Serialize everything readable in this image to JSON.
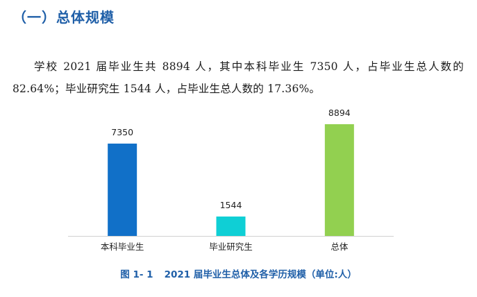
{
  "section": {
    "heading": "（一）总体规模"
  },
  "paragraph": {
    "text": "学校 2021 届毕业生共 8894 人，其中本科毕业生 7350 人，占毕业生总人数的 82.64%；毕业研究生 1544 人，占毕业生总人数的 17.36%。"
  },
  "caption": {
    "figure_number": "图 1- 1",
    "text": "2021 届毕业生总体及各学历规模（单位:人）"
  },
  "chart_data": {
    "type": "bar",
    "categories": [
      "本科毕业生",
      "毕业研究生",
      "总体"
    ],
    "values": [
      7350,
      1544,
      8894
    ],
    "value_labels": [
      "7350",
      "1544",
      "8894"
    ],
    "colors": [
      "#1170c8",
      "#0fcfd5",
      "#92d050"
    ],
    "title": "",
    "xlabel": "",
    "ylabel": "",
    "ylim": [
      0,
      9500
    ],
    "grid": false,
    "legend": "none"
  }
}
